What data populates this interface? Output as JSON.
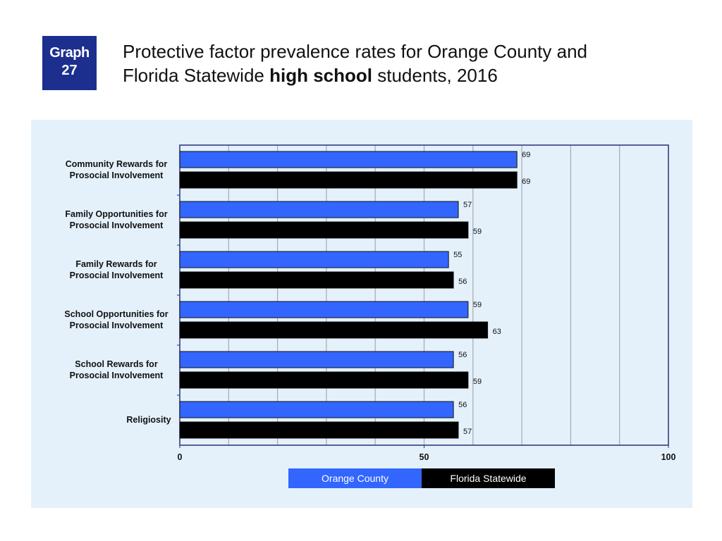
{
  "badge": {
    "line1": "Graph",
    "line2": "27"
  },
  "title": {
    "part1": "Protective factor prevalence rates for Orange County and",
    "part2": "Florida Statewide ",
    "bold": "high school",
    "part3": " students, 2016"
  },
  "colors": {
    "orange_county": "#3366ff",
    "florida_statewide": "#000000",
    "badge": "#1c2f8f",
    "panel": "#e4f1fb"
  },
  "chart_data": {
    "type": "bar",
    "orientation": "horizontal",
    "categories": [
      [
        "Community Rewards for",
        "Prosocial Involvement"
      ],
      [
        "Family Opportunities for",
        "Prosocial Involvement"
      ],
      [
        "Family Rewards for",
        "Prosocial Involvement"
      ],
      [
        "School Opportunities for",
        "Prosocial Involvement"
      ],
      [
        "School Rewards for",
        "Prosocial Involvement"
      ],
      [
        "Religiosity"
      ]
    ],
    "series": [
      {
        "name": "Orange County",
        "values": [
          69,
          57,
          55,
          59,
          56,
          56
        ]
      },
      {
        "name": "Florida Statewide",
        "values": [
          69,
          59,
          56,
          63,
          59,
          57
        ]
      }
    ],
    "xlim": [
      0,
      100
    ],
    "xticks": [
      0,
      50,
      100
    ],
    "grid": true,
    "legend": "bottom"
  }
}
